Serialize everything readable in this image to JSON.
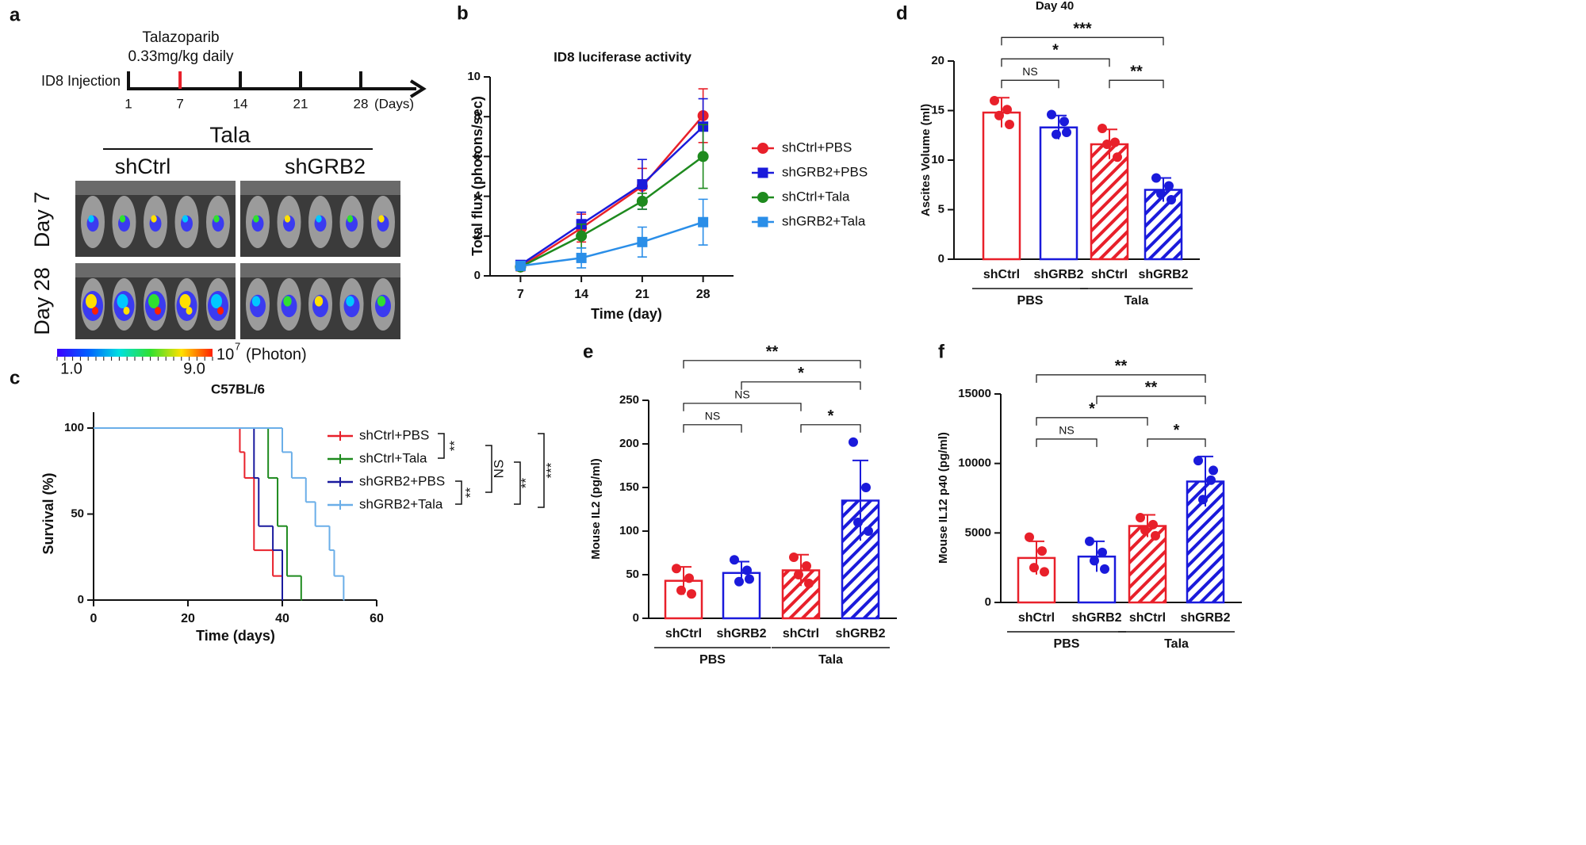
{
  "panel_a": {
    "panel": "a",
    "drug": "Talazoparib",
    "dose": "0.33mg/kg daily",
    "injection": "ID8 Injection",
    "timeline_ticks": [
      1,
      7,
      14,
      21,
      28
    ],
    "timeline_unit": "(Days)",
    "treatment": "Tala",
    "columns": [
      "shCtrl",
      "shGRB2"
    ],
    "rows": [
      "Day 7",
      "Day 28"
    ],
    "colorbar": {
      "min": "1.0",
      "max": "9.0",
      "base": "10",
      "exponent": "7",
      "unit": "(Photon)"
    }
  },
  "chart_data": [
    {
      "panel": "b",
      "type": "line",
      "title": "ID8 luciferase activity",
      "xlabel": "Time (day)",
      "ylabel": "Total flux (photons/sec)",
      "x": [
        7,
        14,
        21,
        28
      ],
      "xlim": [
        3.5,
        31.5
      ],
      "xticks": [
        7,
        14,
        21,
        28
      ],
      "ylim": [
        0,
        10
      ],
      "yticks": [
        0,
        2,
        4,
        6,
        8,
        10
      ],
      "series": [
        {
          "name": "shCtrl+PBS",
          "color": "#e8202a",
          "marker": "circle",
          "values": [
            0.45,
            2.4,
            4.5,
            8.05
          ],
          "errors": [
            0.2,
            0.7,
            0.9,
            1.35
          ]
        },
        {
          "name": "shGRB2+PBS",
          "color": "#1a1adb",
          "marker": "square",
          "values": [
            0.55,
            2.6,
            4.6,
            7.5
          ],
          "errors": [
            0.2,
            0.6,
            1.25,
            1.4
          ]
        },
        {
          "name": "shCtrl+Tala",
          "color": "#1e8a1e",
          "marker": "circle",
          "values": [
            0.45,
            2.0,
            3.75,
            6.0
          ],
          "errors": [
            0.1,
            0.6,
            0.4,
            1.6
          ]
        },
        {
          "name": "shGRB2+Tala",
          "color": "#2a8ee8",
          "marker": "square",
          "values": [
            0.5,
            0.9,
            1.7,
            2.7
          ],
          "errors": [
            0.1,
            0.5,
            0.75,
            1.15
          ]
        }
      ]
    },
    {
      "panel": "c",
      "type": "step",
      "title": "C57BL/6",
      "xlabel": "Time (days)",
      "ylabel": "Survival (%)",
      "xlim": [
        0,
        60
      ],
      "xticks": [
        0,
        20,
        40,
        60
      ],
      "ylim": [
        0,
        100
      ],
      "yticks": [
        0,
        50,
        100
      ],
      "series": [
        {
          "name": "shCtrl+PBS",
          "color": "#e8202a",
          "x": [
            0,
            31,
            32,
            34,
            38,
            40
          ],
          "values": [
            100,
            86,
            71,
            29,
            14,
            0
          ]
        },
        {
          "name": "shCtrl+Tala",
          "color": "#1e8a1e",
          "x": [
            0,
            37,
            39,
            41,
            44
          ],
          "values": [
            100,
            71,
            43,
            14,
            0
          ]
        },
        {
          "name": "shGRB2+PBS",
          "color": "#1a1a9e",
          "x": [
            0,
            34,
            35,
            38,
            40
          ],
          "values": [
            100,
            71,
            43,
            29,
            0
          ]
        },
        {
          "name": "shGRB2+Tala",
          "color": "#6aaee8",
          "x": [
            0,
            40,
            42,
            45,
            47,
            50,
            51,
            53
          ],
          "values": [
            100,
            86,
            71,
            57,
            43,
            29,
            14,
            0
          ]
        }
      ],
      "annotations": [
        "**",
        "NS",
        "**",
        "**",
        "***"
      ]
    },
    {
      "panel": "d",
      "type": "bar",
      "title": "Day 40",
      "ylabel": "Ascites Volume (ml)",
      "categories": [
        "shCtrl",
        "shGRB2",
        "shCtrl",
        "shGRB2"
      ],
      "groups": [
        "PBS",
        "Tala"
      ],
      "colors": [
        "#e8202a",
        "#1a1adb",
        "#e8202a",
        "#1a1adb"
      ],
      "hatched": [
        false,
        false,
        true,
        true
      ],
      "values": [
        14.8,
        13.3,
        11.6,
        7.0
      ],
      "errors": [
        1.5,
        1.2,
        1.5,
        1.2
      ],
      "points": [
        [
          16.0,
          15.1,
          14.5,
          13.6
        ],
        [
          14.6,
          13.9,
          12.6,
          12.8
        ],
        [
          13.2,
          11.8,
          11.6,
          10.3
        ],
        [
          8.2,
          7.4,
          6.6,
          6.0
        ]
      ],
      "ylim": [
        0,
        20
      ],
      "yticks": [
        0,
        5,
        10,
        15,
        20
      ],
      "significance": [
        {
          "pair": [
            0,
            1
          ],
          "label": "NS"
        },
        {
          "pair": [
            2,
            3
          ],
          "label": "**"
        },
        {
          "pair": [
            0,
            2
          ],
          "label": "*"
        },
        {
          "pair": [
            0,
            3
          ],
          "label": "***"
        }
      ]
    },
    {
      "panel": "e",
      "type": "bar",
      "ylabel": "Mouse IL2 (pg/ml)",
      "categories": [
        "shCtrl",
        "shGRB2",
        "shCtrl",
        "shGRB2"
      ],
      "groups": [
        "PBS",
        "Tala"
      ],
      "colors": [
        "#e8202a",
        "#1a1adb",
        "#e8202a",
        "#1a1adb"
      ],
      "hatched": [
        false,
        false,
        true,
        true
      ],
      "values": [
        43,
        52,
        55,
        135
      ],
      "errors": [
        16,
        13,
        18,
        46
      ],
      "points": [
        [
          57,
          46,
          32,
          28
        ],
        [
          67,
          55,
          42,
          45
        ],
        [
          70,
          60,
          50,
          40
        ],
        [
          202,
          150,
          110,
          100
        ]
      ],
      "ylim": [
        0,
        250
      ],
      "yticks": [
        0,
        50,
        100,
        150,
        200,
        250
      ],
      "significance": [
        {
          "pair": [
            0,
            1
          ],
          "label": "NS"
        },
        {
          "pair": [
            2,
            3
          ],
          "label": "*"
        },
        {
          "pair": [
            0,
            2
          ],
          "label": "NS"
        },
        {
          "pair": [
            1,
            3
          ],
          "label": "*"
        },
        {
          "pair": [
            0,
            3
          ],
          "label": "**"
        }
      ]
    },
    {
      "panel": "f",
      "type": "bar",
      "ylabel": "Mouse IL12 p40 (pg/ml)",
      "categories": [
        "shCtrl",
        "shGRB2",
        "shCtrl",
        "shGRB2"
      ],
      "groups": [
        "PBS",
        "Tala"
      ],
      "colors": [
        "#e8202a",
        "#1a1adb",
        "#e8202a",
        "#1a1adb"
      ],
      "hatched": [
        false,
        false,
        true,
        true
      ],
      "values": [
        3200,
        3300,
        5500,
        8700
      ],
      "errors": [
        1200,
        1100,
        800,
        1800
      ],
      "points": [
        [
          4700,
          3700,
          2500,
          2200
        ],
        [
          4400,
          3600,
          3000,
          2400
        ],
        [
          6100,
          5600,
          5200,
          4800
        ],
        [
          10200,
          8800,
          7400,
          9500
        ]
      ],
      "ylim": [
        0,
        15000
      ],
      "yticks": [
        0,
        5000,
        10000,
        15000
      ],
      "significance": [
        {
          "pair": [
            0,
            1
          ],
          "label": "NS"
        },
        {
          "pair": [
            2,
            3
          ],
          "label": "*"
        },
        {
          "pair": [
            0,
            2
          ],
          "label": "*"
        },
        {
          "pair": [
            1,
            3
          ],
          "label": "**"
        },
        {
          "pair": [
            0,
            3
          ],
          "label": "**"
        }
      ]
    }
  ]
}
